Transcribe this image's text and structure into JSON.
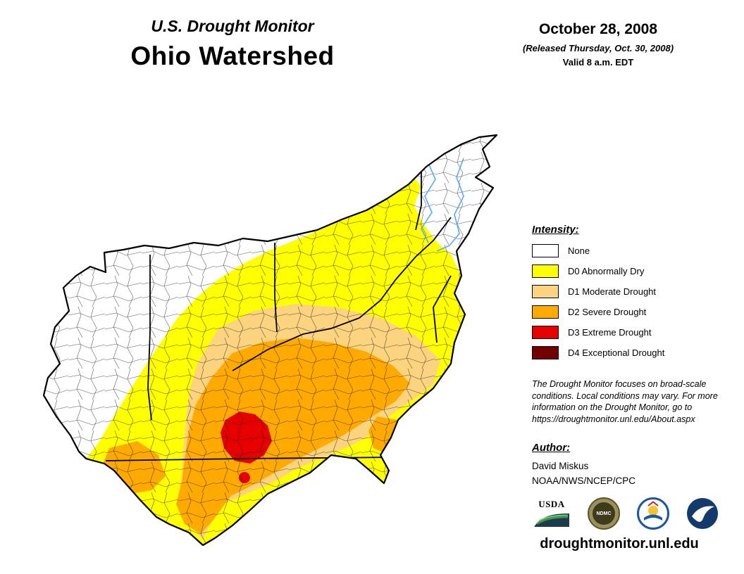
{
  "header": {
    "title_line1": "U.S. Drought Monitor",
    "title_line2": "Ohio Watershed"
  },
  "date_block": {
    "date": "October 28, 2008",
    "released": "(Released Thursday, Oct. 30, 2008)",
    "valid": "Valid 8 a.m. EDT"
  },
  "legend": {
    "heading": "Intensity:",
    "items": [
      {
        "label": "None",
        "color": "#FFFFFF"
      },
      {
        "label": "D0 Abnormally Dry",
        "color": "#FFFF00"
      },
      {
        "label": "D1 Moderate Drought",
        "color": "#FCD37F"
      },
      {
        "label": "D2 Severe Drought",
        "color": "#FFAA00"
      },
      {
        "label": "D3 Extreme Drought",
        "color": "#E60000"
      },
      {
        "label": "D4 Exceptional Drought",
        "color": "#730000"
      }
    ]
  },
  "disclaimer": "The Drought Monitor focuses on broad-scale conditions. Local conditions may vary. For more information on the Drought Monitor, go to https://droughtmonitor.unl.edu/About.aspx",
  "author": {
    "heading": "Author:",
    "name": "David Miskus",
    "org": "NOAA/NWS/NCEP/CPC"
  },
  "logos": [
    {
      "id": "usda-logo",
      "label": "USDA"
    },
    {
      "id": "ndmc-logo",
      "label": "NDMC"
    },
    {
      "id": "nws-logo",
      "label": ""
    },
    {
      "id": "noaa-logo",
      "label": ""
    }
  ],
  "footer": {
    "url": "droughtmonitor.unl.edu"
  },
  "map": {
    "name": "Ohio Watershed drought intensity map",
    "river_color": "#55AAFF",
    "boundary_color": "#000000"
  }
}
